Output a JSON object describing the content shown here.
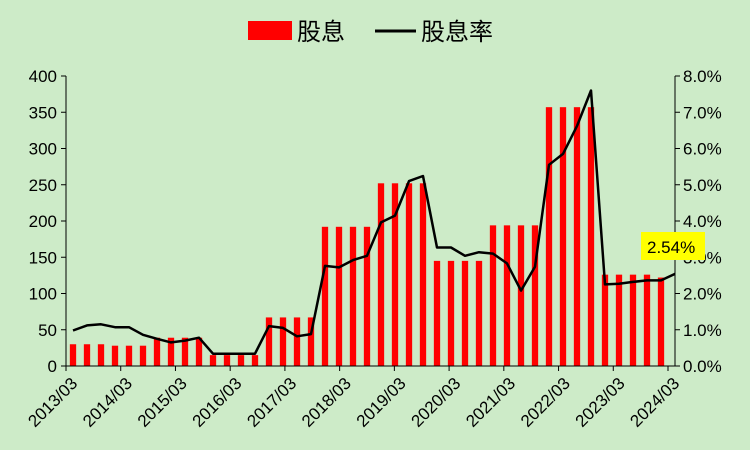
{
  "colors": {
    "background": "#cdebc8",
    "bar": "#ff0000",
    "line": "#000000",
    "callout_bg": "#ffff00"
  },
  "legend": {
    "bar_label": "股息",
    "line_label": "股息率"
  },
  "callout": {
    "label": "2.54%"
  },
  "chart_data": {
    "type": "bar",
    "legend_position": "top-center",
    "grid": false,
    "x_ticks": [
      "2013/03",
      "2014/03",
      "2015/03",
      "2016/03",
      "2017/03",
      "2018/03",
      "2019/03",
      "2020/03",
      "2021/03",
      "2022/03",
      "2023/03",
      "2024/03"
    ],
    "y_left_ticks": [
      "0",
      "50",
      "100",
      "150",
      "200",
      "250",
      "300",
      "350",
      "400"
    ],
    "y_right_ticks": [
      "0.0%",
      "1.0%",
      "2.0%",
      "3.0%",
      "4.0%",
      "5.0%",
      "6.0%",
      "7.0%",
      "8.0%"
    ],
    "ylim_left": [
      0,
      400
    ],
    "ylim_right": [
      0,
      8
    ],
    "series": [
      {
        "name": "股息",
        "type": "bar",
        "axis": "left",
        "values": [
          30,
          30,
          30,
          28,
          28,
          28,
          39,
          39,
          39,
          39,
          15,
          15,
          15,
          15,
          67,
          67,
          67,
          67,
          192,
          192,
          192,
          192,
          252,
          252,
          252,
          252,
          145,
          145,
          145,
          145,
          194,
          194,
          194,
          194,
          357,
          357,
          357,
          357,
          126,
          126,
          126,
          126,
          122
        ]
      },
      {
        "name": "股息率",
        "type": "line",
        "axis": "right",
        "values": [
          0.98,
          1.12,
          1.15,
          1.07,
          1.07,
          0.86,
          0.75,
          0.65,
          0.7,
          0.78,
          0.34,
          0.34,
          0.34,
          0.34,
          1.1,
          1.05,
          0.82,
          0.88,
          2.76,
          2.72,
          2.92,
          3.04,
          3.96,
          4.15,
          5.1,
          5.24,
          3.27,
          3.27,
          3.04,
          3.14,
          3.1,
          2.83,
          2.08,
          2.74,
          5.55,
          5.85,
          6.62,
          7.6,
          2.25,
          2.27,
          2.32,
          2.36,
          2.36,
          2.54
        ]
      }
    ]
  }
}
